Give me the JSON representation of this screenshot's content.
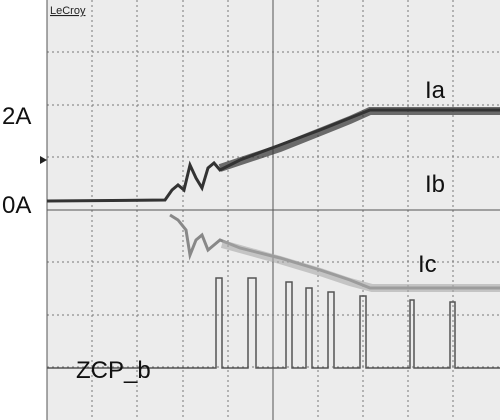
{
  "header": {
    "brand": "LeCroy"
  },
  "axis_labels": {
    "upper": "2A",
    "lower": "0A"
  },
  "traces": [
    {
      "label": "Ia"
    },
    {
      "label": "Ib"
    },
    {
      "label": "Ic"
    },
    {
      "label": "ZCP_b"
    }
  ]
}
